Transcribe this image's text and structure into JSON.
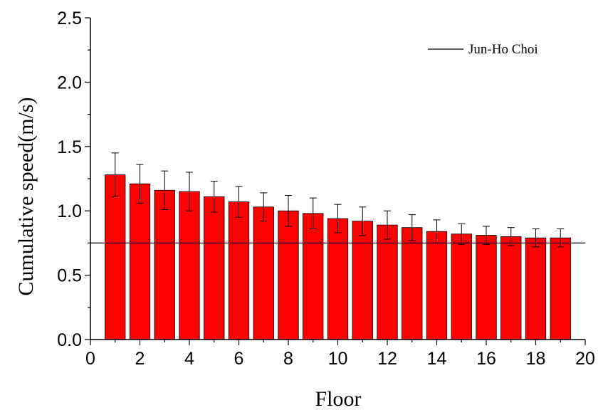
{
  "chart_data": {
    "type": "bar",
    "xlabel": "Floor",
    "ylabel": "Cumulative speed(m/s)",
    "xlim": [
      0,
      20
    ],
    "ylim": [
      0,
      2.5
    ],
    "x_ticks": [
      "0",
      "2",
      "4",
      "6",
      "8",
      "10",
      "12",
      "14",
      "16",
      "18",
      "20"
    ],
    "y_ticks": [
      "0.0",
      "0.5",
      "1.0",
      "1.5",
      "2.0",
      "2.5"
    ],
    "grid": false,
    "bar_color": "#ff0000",
    "x": [
      1,
      2,
      3,
      4,
      5,
      6,
      7,
      8,
      9,
      10,
      11,
      12,
      13,
      14,
      15,
      16,
      17,
      18,
      19
    ],
    "values": [
      1.28,
      1.21,
      1.16,
      1.15,
      1.11,
      1.07,
      1.03,
      1.0,
      0.98,
      0.94,
      0.92,
      0.89,
      0.87,
      0.84,
      0.82,
      0.81,
      0.8,
      0.79,
      0.79
    ],
    "error": [
      0.17,
      0.15,
      0.15,
      0.15,
      0.12,
      0.12,
      0.11,
      0.12,
      0.12,
      0.11,
      0.11,
      0.11,
      0.1,
      0.09,
      0.08,
      0.07,
      0.07,
      0.07,
      0.07
    ],
    "reference_line": {
      "name": "Jun-Ho Choi",
      "y": 0.75,
      "color": "#000000"
    },
    "legend_position": "top-right"
  }
}
